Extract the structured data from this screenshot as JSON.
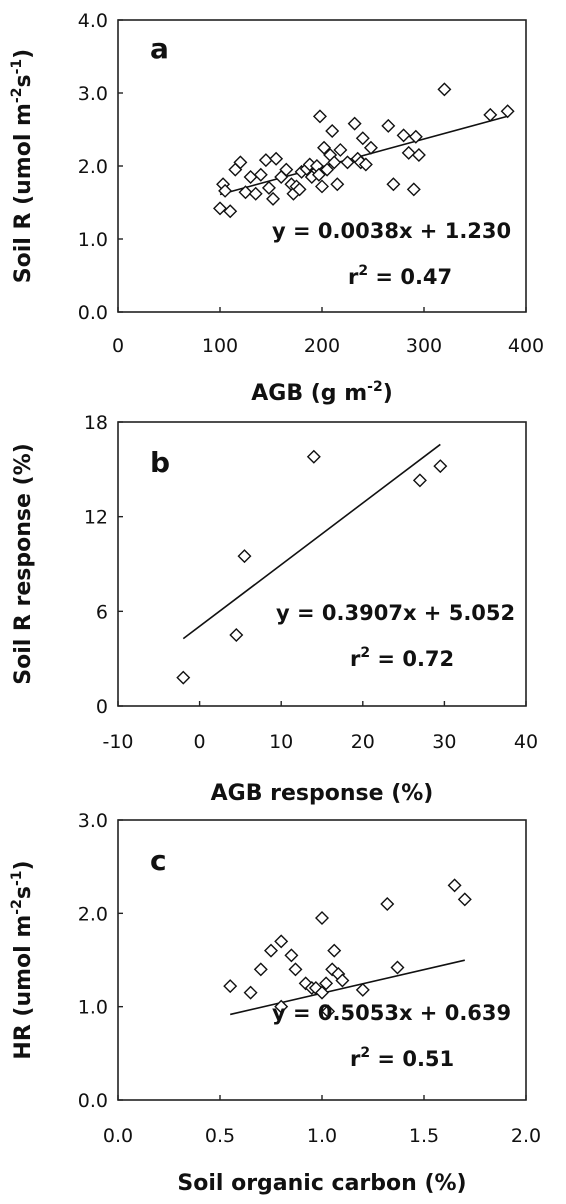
{
  "chart_data": [
    {
      "type": "scatter",
      "panel_label": "a",
      "xlabel": "AGB (g m⁻²)",
      "xlabel_parts": [
        {
          "t": "AGB (g m"
        },
        {
          "t": "-2",
          "sup": true
        },
        {
          "t": ")"
        }
      ],
      "ylabel": "Soil R (umol m⁻²s⁻¹)",
      "ylabel_parts": [
        {
          "t": "Soil R (umol m"
        },
        {
          "t": "-2",
          "sup": true
        },
        {
          "t": "s"
        },
        {
          "t": "-1",
          "sup": true
        },
        {
          "t": ")"
        }
      ],
      "xlim": [
        0,
        400
      ],
      "ylim": [
        0,
        4
      ],
      "xticks": [
        "0",
        "100",
        "200",
        "300",
        "400"
      ],
      "yticks": [
        "0.0",
        "1.0",
        "2.0",
        "3.0",
        "4.0"
      ],
      "points": [
        [
          100,
          1.42
        ],
        [
          103,
          1.75
        ],
        [
          105,
          1.66
        ],
        [
          110,
          1.38
        ],
        [
          115,
          1.95
        ],
        [
          120,
          2.05
        ],
        [
          125,
          1.64
        ],
        [
          130,
          1.85
        ],
        [
          135,
          1.62
        ],
        [
          140,
          1.88
        ],
        [
          145,
          2.08
        ],
        [
          148,
          1.7
        ],
        [
          152,
          1.55
        ],
        [
          155,
          2.1
        ],
        [
          160,
          1.85
        ],
        [
          165,
          1.95
        ],
        [
          170,
          1.75
        ],
        [
          172,
          1.62
        ],
        [
          175,
          1.72
        ],
        [
          178,
          1.68
        ],
        [
          180,
          1.92
        ],
        [
          185,
          1.96
        ],
        [
          188,
          2.02
        ],
        [
          190,
          1.85
        ],
        [
          195,
          2.0
        ],
        [
          197,
          1.88
        ],
        [
          198,
          2.68
        ],
        [
          200,
          1.72
        ],
        [
          202,
          2.25
        ],
        [
          205,
          1.95
        ],
        [
          208,
          2.15
        ],
        [
          210,
          2.48
        ],
        [
          212,
          2.05
        ],
        [
          215,
          1.75
        ],
        [
          218,
          2.22
        ],
        [
          225,
          2.05
        ],
        [
          232,
          2.58
        ],
        [
          235,
          2.1
        ],
        [
          238,
          2.05
        ],
        [
          240,
          2.38
        ],
        [
          243,
          2.02
        ],
        [
          248,
          2.25
        ],
        [
          265,
          2.55
        ],
        [
          270,
          1.75
        ],
        [
          280,
          2.42
        ],
        [
          285,
          2.18
        ],
        [
          290,
          1.68
        ],
        [
          292,
          2.4
        ],
        [
          295,
          2.15
        ],
        [
          320,
          3.05
        ],
        [
          365,
          2.7
        ],
        [
          382,
          2.75
        ]
      ],
      "fit": {
        "slope": 0.0038,
        "intercept": 1.23,
        "x_range": [
          100,
          382
        ]
      },
      "equation": "y = 0.0038x + 1.230",
      "r2_label": "r",
      "r2_sup": "2",
      "r2_value": " = 0.47"
    },
    {
      "type": "scatter",
      "panel_label": "b",
      "xlabel": "AGB response (%)",
      "xlabel_parts": [
        {
          "t": "AGB response (%)"
        }
      ],
      "ylabel": "Soil R response (%)",
      "ylabel_parts": [
        {
          "t": "Soil R response (%)"
        }
      ],
      "xlim": [
        -10,
        40
      ],
      "ylim": [
        0,
        18
      ],
      "xticks": [
        "-10",
        "0",
        "10",
        "20",
        "30",
        "40"
      ],
      "yticks": [
        "0",
        "6",
        "12",
        "18"
      ],
      "points": [
        [
          -2,
          1.8
        ],
        [
          4.5,
          4.5
        ],
        [
          5.5,
          9.5
        ],
        [
          14,
          15.8
        ],
        [
          27,
          14.3
        ],
        [
          29.5,
          15.2
        ]
      ],
      "fit": {
        "slope": 0.3907,
        "intercept": 5.052,
        "x_range": [
          -2,
          29.5
        ]
      },
      "equation": "y = 0.3907x + 5.052",
      "r2_label": "r",
      "r2_sup": "2",
      "r2_value": " = 0.72"
    },
    {
      "type": "scatter",
      "panel_label": "c",
      "xlabel": "Soil organic carbon (%)",
      "xlabel_parts": [
        {
          "t": "Soil organic carbon (%)"
        }
      ],
      "ylabel": "HR (umol m⁻²s⁻¹)",
      "ylabel_parts": [
        {
          "t": "HR (umol m"
        },
        {
          "t": "-2",
          "sup": true
        },
        {
          "t": "s"
        },
        {
          "t": "-1",
          "sup": true
        },
        {
          "t": ")"
        }
      ],
      "xlim": [
        0,
        2
      ],
      "ylim": [
        0,
        3
      ],
      "xticks": [
        "0.0",
        "0.5",
        "1.0",
        "1.5",
        "2.0"
      ],
      "yticks": [
        "0.0",
        "1.0",
        "2.0",
        "3.0"
      ],
      "points": [
        [
          0.55,
          1.22
        ],
        [
          0.65,
          1.15
        ],
        [
          0.7,
          1.4
        ],
        [
          0.75,
          1.6
        ],
        [
          0.8,
          1.7
        ],
        [
          0.8,
          1.0
        ],
        [
          0.85,
          1.55
        ],
        [
          0.87,
          1.4
        ],
        [
          0.92,
          1.25
        ],
        [
          0.95,
          1.2
        ],
        [
          0.97,
          1.2
        ],
        [
          1.0,
          1.95
        ],
        [
          1.0,
          1.15
        ],
        [
          1.02,
          1.25
        ],
        [
          1.03,
          0.95
        ],
        [
          1.05,
          1.4
        ],
        [
          1.06,
          1.6
        ],
        [
          1.08,
          1.35
        ],
        [
          1.1,
          1.28
        ],
        [
          1.2,
          1.18
        ],
        [
          1.32,
          2.1
        ],
        [
          1.37,
          1.42
        ],
        [
          1.65,
          2.3
        ],
        [
          1.7,
          2.15
        ]
      ],
      "fit": {
        "slope": 0.5053,
        "intercept": 0.639,
        "x_range": [
          0.55,
          1.7
        ]
      },
      "equation": "y = 0.5053x + 0.639",
      "r2_label": "r",
      "r2_sup": "2",
      "r2_value": " = 0.51"
    }
  ]
}
